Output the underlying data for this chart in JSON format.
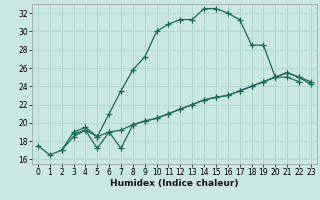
{
  "xlabel": "Humidex (Indice chaleur)",
  "bg_color": "#c8e8e0",
  "grid_color": "#aed4cb",
  "line_color": "#1a6b5a",
  "xlim": [
    -0.5,
    23.5
  ],
  "ylim": [
    15.5,
    33
  ],
  "xticks": [
    0,
    1,
    2,
    3,
    4,
    5,
    6,
    7,
    8,
    9,
    10,
    11,
    12,
    13,
    14,
    15,
    16,
    17,
    18,
    19,
    20,
    21,
    22,
    23
  ],
  "yticks": [
    16,
    18,
    20,
    22,
    24,
    26,
    28,
    30,
    32
  ],
  "line1_x": [
    0,
    1,
    2,
    3,
    4,
    5,
    6,
    7,
    8,
    9,
    10,
    11,
    12,
    13,
    14,
    15,
    16,
    17,
    18,
    19,
    20,
    21,
    22
  ],
  "line1_y": [
    17.5,
    16.5,
    17.0,
    19.0,
    19.5,
    18.5,
    21.0,
    23.5,
    25.8,
    27.2,
    30.0,
    30.8,
    31.3,
    31.3,
    32.5,
    32.5,
    32.0,
    31.3,
    28.5,
    28.5,
    25.0,
    25.0,
    24.5
  ],
  "line2_x": [
    2,
    3,
    4,
    5,
    6,
    7,
    8,
    9,
    10,
    11,
    12,
    13,
    14,
    15,
    16,
    17,
    18,
    19,
    20,
    21,
    22,
    23
  ],
  "line2_y": [
    17.0,
    18.5,
    19.2,
    17.2,
    19.0,
    17.2,
    19.8,
    20.2,
    20.5,
    21.0,
    21.5,
    22.0,
    22.5,
    22.8,
    23.0,
    23.5,
    24.0,
    24.5,
    25.0,
    25.5,
    25.0,
    24.5
  ],
  "line3_x": [
    3,
    4,
    5,
    6,
    7,
    8,
    9,
    10,
    11,
    12,
    13,
    14,
    15,
    16,
    17,
    18,
    19,
    20,
    21,
    22,
    23
  ],
  "line3_y": [
    18.8,
    19.2,
    18.5,
    19.0,
    19.2,
    19.8,
    20.2,
    20.5,
    21.0,
    21.5,
    22.0,
    22.5,
    22.8,
    23.0,
    23.5,
    24.0,
    24.5,
    25.0,
    25.5,
    25.0,
    24.2
  ]
}
